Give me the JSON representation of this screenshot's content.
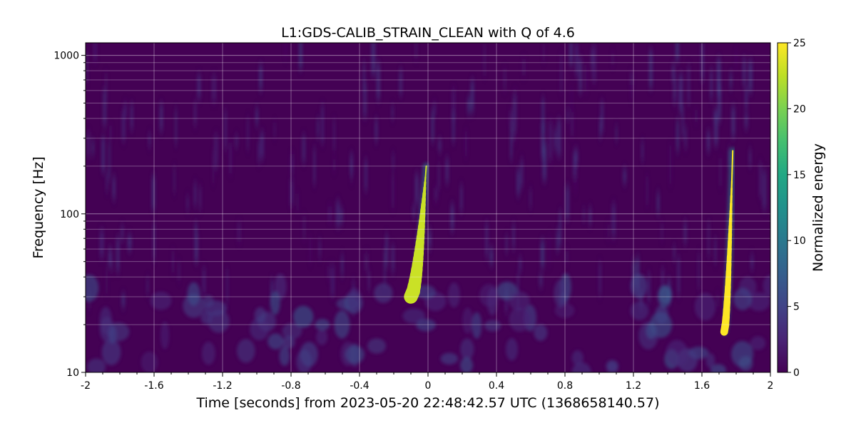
{
  "chart_data": {
    "type": "heatmap",
    "title": "L1:GDS-CALIB_STRAIN_CLEAN with Q of 4.6",
    "xlabel": "Time [seconds] from 2023-05-20 22:48:42.57 UTC (1368658140.57)",
    "ylabel": "Frequency [Hz]",
    "xlim": [
      -2,
      2
    ],
    "ylim": [
      10,
      1200
    ],
    "yscale": "log",
    "x_ticks": [
      -2,
      -1.6,
      -1.2,
      -0.8,
      -0.4,
      0,
      0.4,
      0.8,
      1.2,
      1.6,
      2
    ],
    "x_tick_labels": [
      "-2",
      "-1.6",
      "-1.2",
      "-0.8",
      "-0.4",
      "0",
      "0.4",
      "0.8",
      "1.2",
      "1.6",
      "2"
    ],
    "y_ticks": [
      10,
      100,
      1000
    ],
    "y_tick_labels": [
      "10",
      "100",
      "1000"
    ],
    "grid": true,
    "colorbar": {
      "label": "Normalized energy",
      "range": [
        0,
        25
      ],
      "ticks": [
        0,
        5,
        10,
        15,
        20,
        25
      ],
      "tick_labels": [
        "0",
        "5",
        "10",
        "15",
        "20",
        "25"
      ],
      "colormap": "viridis"
    },
    "features": [
      {
        "t_start": -0.1,
        "t_end": -0.01,
        "f_start": 30,
        "f_end": 200,
        "peak_energy": 23
      },
      {
        "t_start": 1.73,
        "t_end": 1.78,
        "f_start": 18,
        "f_end": 250,
        "peak_energy": 25
      }
    ]
  }
}
